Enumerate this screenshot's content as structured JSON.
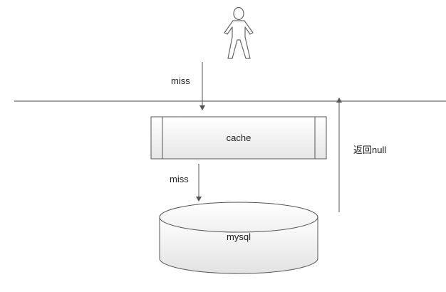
{
  "labels": {
    "miss_top": "miss",
    "cache": "cache",
    "miss_bottom": "miss",
    "mysql": "mysql",
    "return_null": "返回null"
  },
  "icons": {
    "user": "person-outline-icon"
  },
  "colors": {
    "line": "#444444",
    "shape_stroke": "#555555",
    "fill_top": "#ffffff",
    "fill_bottom": "#e8e8e8",
    "text": "#222222"
  }
}
